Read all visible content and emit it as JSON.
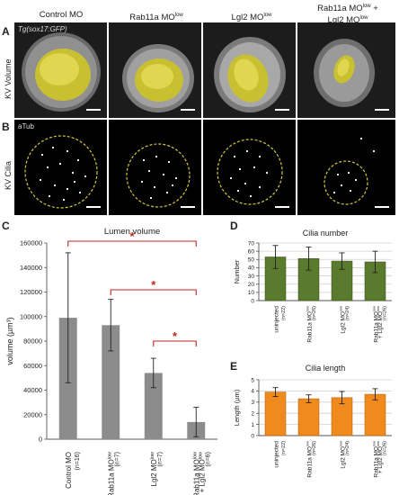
{
  "figure": {
    "columns": [
      "Control MO",
      "Rab11a MO",
      "Lgl2 MO",
      "Rab11a MO",
      "Lgl2 MO"
    ],
    "col_sup": "low",
    "plus": "+",
    "panel_A": {
      "letter": "A",
      "row_label": "KV Volume",
      "marker_label": "Tg(sox17:GFP)"
    },
    "panel_B": {
      "letter": "B",
      "row_label": "KV Cilia",
      "marker_label": "aTub"
    },
    "panel_C": {
      "letter": "C"
    },
    "panel_D": {
      "letter": "D"
    },
    "panel_E": {
      "letter": "E"
    }
  },
  "chart_data": [
    {
      "id": "lumen",
      "type": "bar",
      "title": "Lumen volume",
      "ylabel": "volume (µm³)",
      "ylim": [
        0,
        160000
      ],
      "yticks": [
        "0",
        "20000",
        "40000",
        "60000",
        "80000",
        "100000",
        "120000",
        "140000",
        "160000"
      ],
      "categories": [
        "Control MO",
        "Rab11a MOlow",
        "Lgl2 MOlow",
        "Rab11a MOlow + Lgl2 MOlow"
      ],
      "category_n": [
        "(n=16)",
        "(n=7)",
        "(n=7)",
        "(n=6)"
      ],
      "values": [
        99000,
        93000,
        54000,
        14000
      ],
      "errors": [
        53000,
        21000,
        12000,
        12000
      ],
      "bar_color": "#8c8c8c",
      "significance": [
        "*",
        "*",
        "*"
      ],
      "significance_color": "#c0261f"
    },
    {
      "id": "cilia_number",
      "type": "bar",
      "title": "Cilia number",
      "ylabel": "Number",
      "ylim": [
        0,
        70
      ],
      "yticks": [
        "0",
        "10",
        "20",
        "30",
        "40",
        "50",
        "60",
        "70"
      ],
      "categories": [
        "uninjected",
        "Rab11a MOlow",
        "Lgl2 MOlow",
        "Rab11a MOlow + Lgl2 MOlow"
      ],
      "category_n": [
        "(n=22)",
        "(n=26)",
        "(n=24)",
        "(n=26)"
      ],
      "values": [
        53,
        51,
        48,
        47
      ],
      "errors": [
        14,
        14,
        10,
        13
      ],
      "bar_color": "#5a7a2e"
    },
    {
      "id": "cilia_length",
      "type": "bar",
      "title": "Cilia length",
      "ylabel": "Length (µm)",
      "ylim": [
        0,
        5
      ],
      "yticks": [
        "0",
        "1",
        "2",
        "3",
        "4",
        "5"
      ],
      "categories": [
        "uninjected",
        "Rab11a MOlow",
        "Lgl2 MOlow",
        "Rab11a MOlow + Lgl2 MOlow"
      ],
      "category_n": [
        "(n=22)",
        "(n=26)",
        "(n=24)",
        "(n=26)"
      ],
      "values": [
        3.9,
        3.3,
        3.4,
        3.7
      ],
      "errors": [
        0.4,
        0.35,
        0.55,
        0.5
      ],
      "bar_color": "#f08a1c"
    }
  ]
}
